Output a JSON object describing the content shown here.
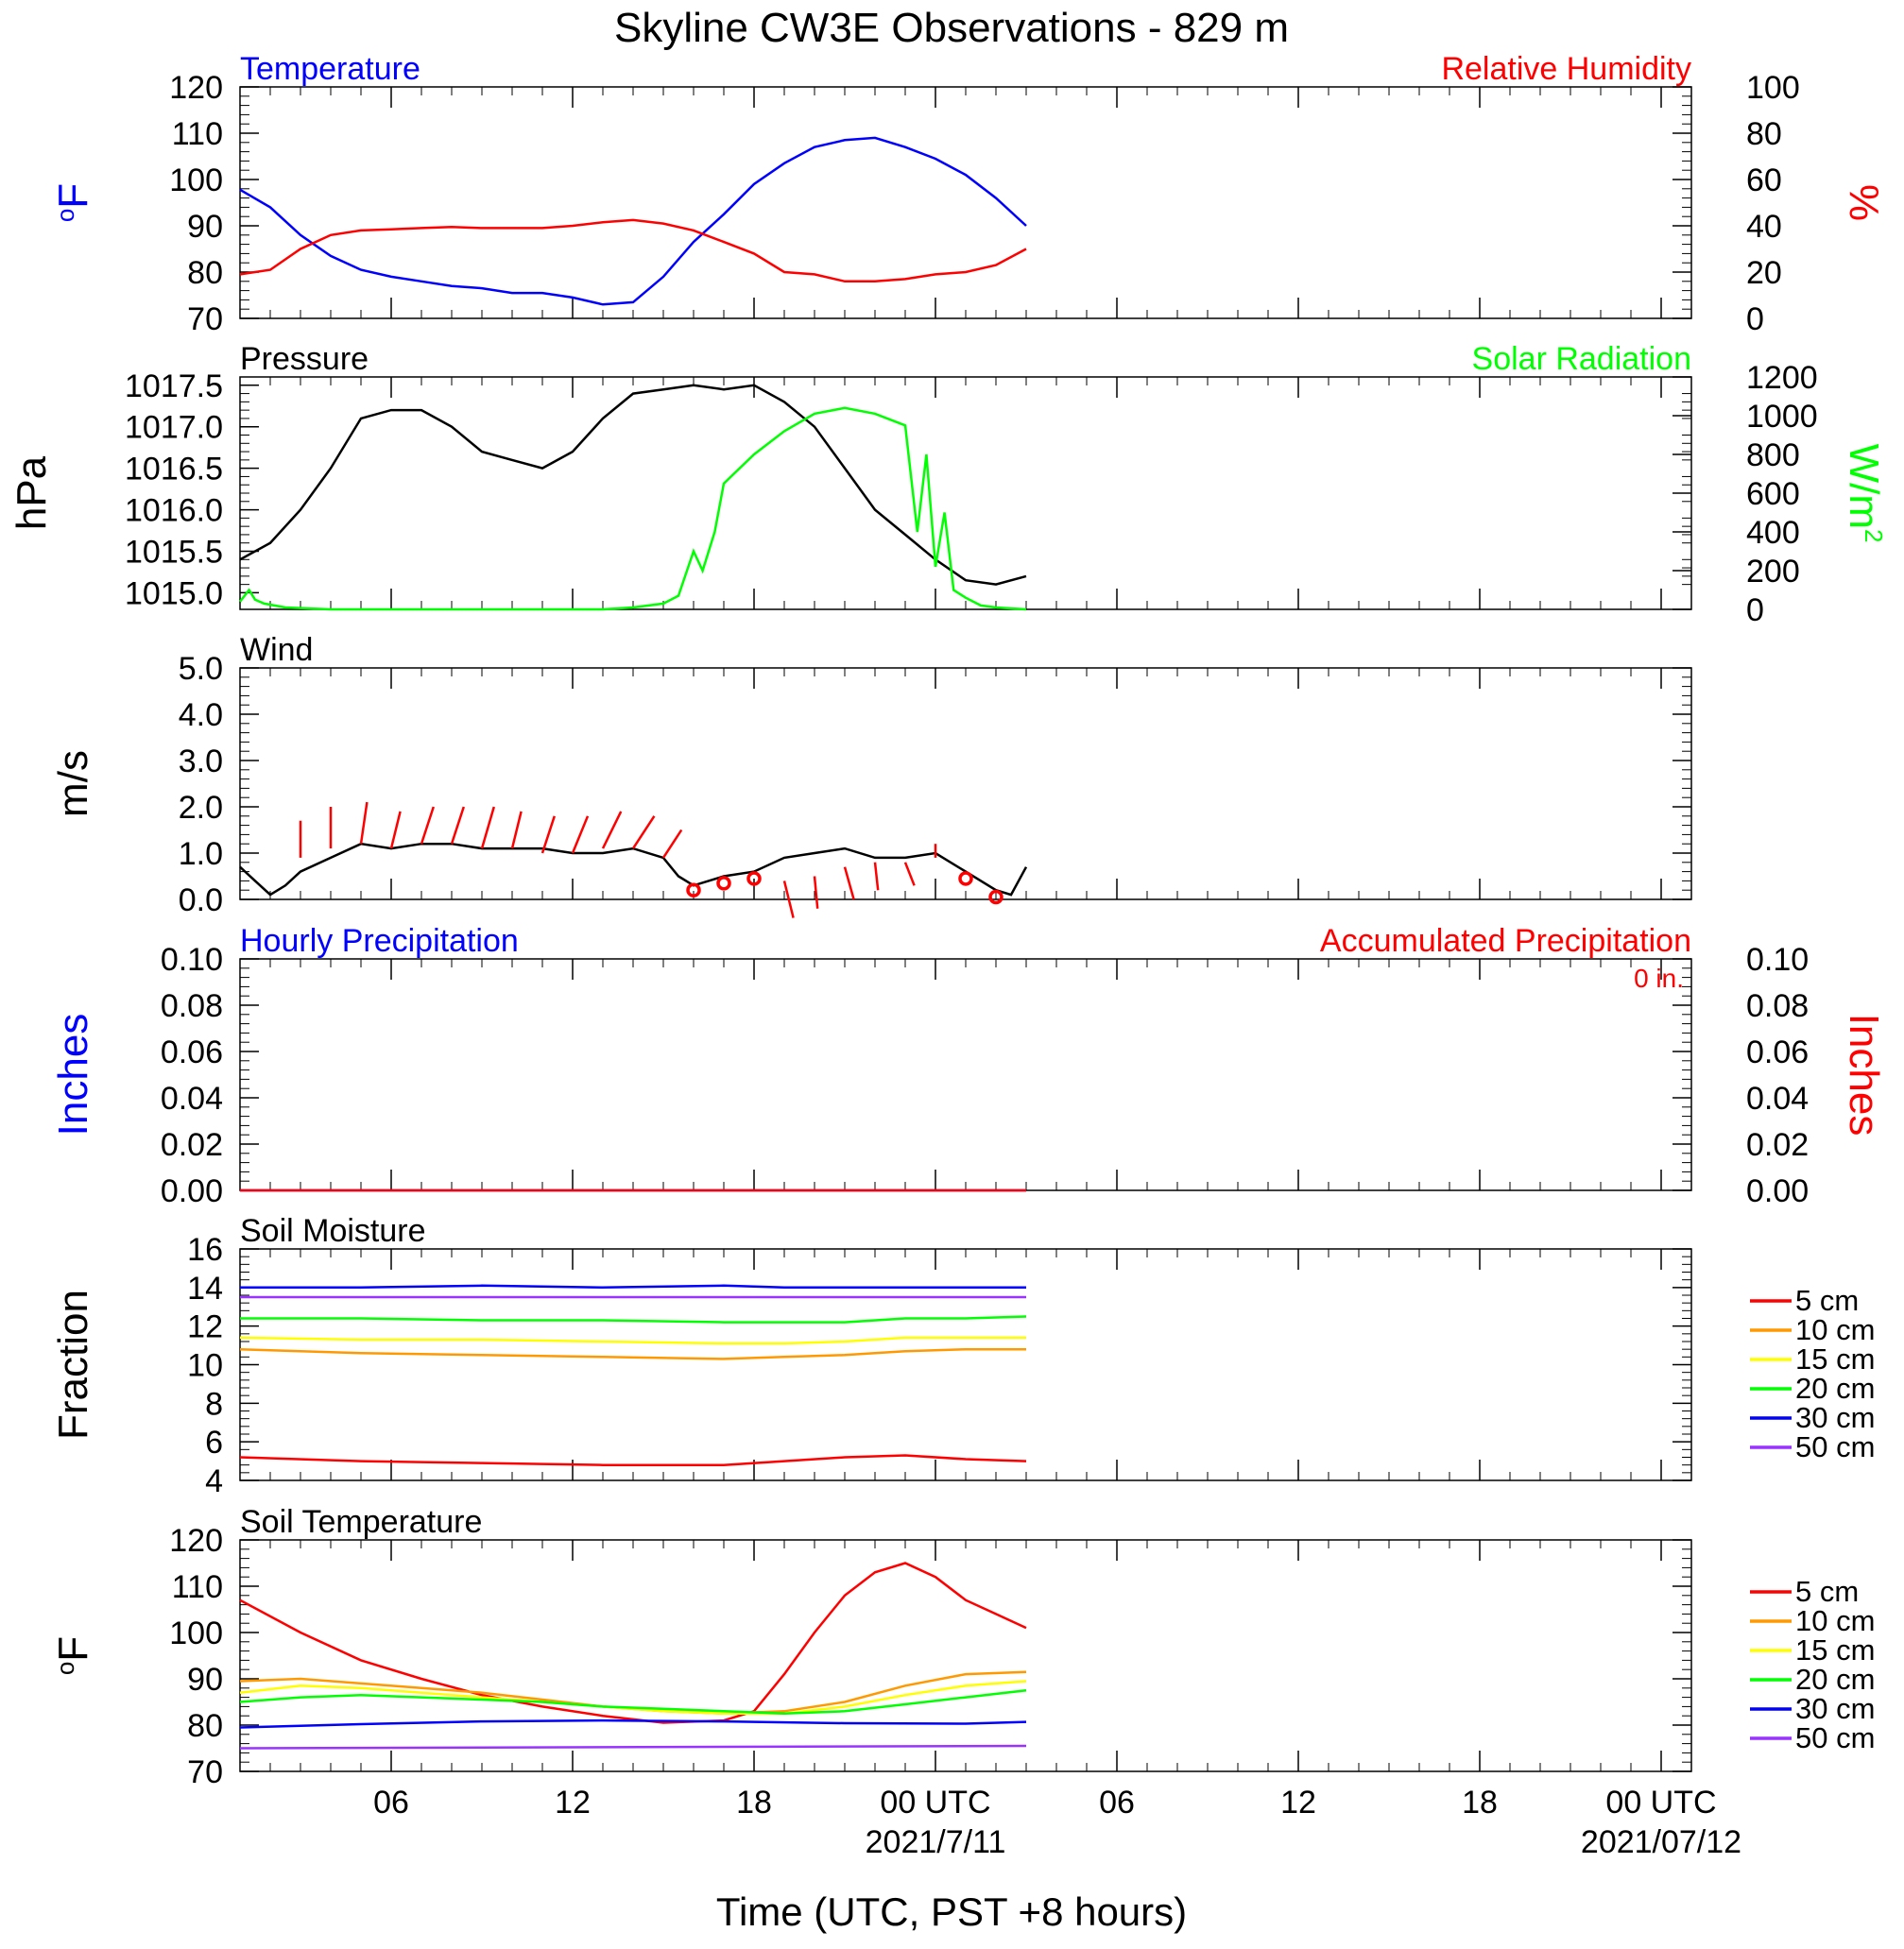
{
  "title": "Skyline CW3E Observations - 829 m",
  "xlabel": "Time (UTC, PST +8 hours)",
  "colors": {
    "temperature": "#0000ff",
    "humidity": "#ff0000",
    "pressure": "#000000",
    "solar": "#00ff00",
    "wind": "#000000",
    "barbs": "#ff0000",
    "hourly_precip": "#0000ff",
    "accum_precip": "#ff0000",
    "depth_5": "#ff0000",
    "depth_10": "#ff9900",
    "depth_15": "#ffff00",
    "depth_20": "#00ff00",
    "depth_30": "#0000ff",
    "depth_50": "#9933ff"
  },
  "x_axis": {
    "range_hours": [
      0,
      48
    ],
    "ticks": [
      {
        "hour": 5,
        "label": "06",
        "sublabel": ""
      },
      {
        "hour": 11,
        "label": "12",
        "sublabel": ""
      },
      {
        "hour": 17,
        "label": "18",
        "sublabel": ""
      },
      {
        "hour": 23,
        "label": "00 UTC",
        "sublabel": "2021/7/11"
      },
      {
        "hour": 29,
        "label": "06",
        "sublabel": ""
      },
      {
        "hour": 35,
        "label": "12",
        "sublabel": ""
      },
      {
        "hour": 41,
        "label": "18",
        "sublabel": ""
      },
      {
        "hour": 47,
        "label": "00 UTC",
        "sublabel": "2021/07/12"
      }
    ]
  },
  "chart_data": [
    {
      "type": "line",
      "panel": "temperature_humidity",
      "left_title": "Temperature",
      "right_title": "Relative Humidity",
      "ylabel": "oF",
      "y2label": "%",
      "ylim": [
        70,
        120
      ],
      "y_ticks": [
        70,
        80,
        90,
        100,
        110,
        120
      ],
      "y2lim": [
        0,
        100
      ],
      "y2_ticks": [
        0,
        20,
        40,
        60,
        80,
        100
      ],
      "series": [
        {
          "name": "Temperature",
          "axis": "left",
          "x": [
            0,
            1,
            2,
            3,
            4,
            5,
            6,
            7,
            8,
            9,
            10,
            11,
            12,
            13,
            14,
            15,
            16,
            17,
            18,
            19,
            20,
            21,
            22,
            23,
            24,
            25,
            26
          ],
          "y": [
            97.8,
            94,
            88,
            83.5,
            80.5,
            79,
            78,
            77,
            76.5,
            75.5,
            75.5,
            74.5,
            73,
            73.5,
            79,
            86.5,
            92.5,
            99,
            103.5,
            107,
            108.5,
            109,
            107,
            104.5,
            101,
            96,
            90
          ]
        },
        {
          "name": "Relative Humidity",
          "axis": "right",
          "x": [
            0,
            1,
            2,
            3,
            4,
            5,
            6,
            7,
            8,
            9,
            10,
            11,
            12,
            13,
            14,
            15,
            16,
            17,
            18,
            19,
            20,
            21,
            22,
            23,
            24,
            25,
            26
          ],
          "y": [
            19,
            21,
            30,
            36,
            38,
            38.5,
            39,
            39.5,
            39,
            39,
            39,
            40,
            41.5,
            42.5,
            41,
            38,
            33,
            28,
            20,
            19,
            16,
            16,
            17,
            19,
            20,
            23,
            30
          ]
        }
      ]
    },
    {
      "type": "line",
      "panel": "pressure_solar",
      "left_title": "Pressure",
      "right_title": "Solar Radiation",
      "ylabel": "hPa",
      "y2label": "W/m2",
      "ylim": [
        1014.8,
        1017.6
      ],
      "y_ticks": [
        1015.0,
        1015.5,
        1016.0,
        1016.5,
        1017.0,
        1017.5
      ],
      "y_tick_labels": [
        "1015.0",
        "1015.5",
        "1016.0",
        "1016.5",
        "1017.0",
        "1017.5"
      ],
      "y2lim": [
        0,
        1200
      ],
      "y2_ticks": [
        0,
        200,
        400,
        600,
        800,
        1000,
        1200
      ],
      "series": [
        {
          "name": "Pressure",
          "axis": "left",
          "x": [
            0,
            1,
            2,
            3,
            4,
            5,
            6,
            7,
            8,
            9,
            10,
            11,
            12,
            13,
            14,
            15,
            16,
            17,
            18,
            19,
            20,
            21,
            22,
            23,
            24,
            25,
            26
          ],
          "y": [
            1015.4,
            1015.6,
            1016.0,
            1016.5,
            1017.1,
            1017.2,
            1017.2,
            1017.0,
            1016.7,
            1016.6,
            1016.5,
            1016.7,
            1017.1,
            1017.4,
            1017.45,
            1017.5,
            1017.45,
            1017.5,
            1017.3,
            1017.0,
            1016.5,
            1016.0,
            1015.7,
            1015.4,
            1015.15,
            1015.1,
            1015.2
          ]
        },
        {
          "name": "Solar Radiation",
          "axis": "right",
          "x": [
            0,
            0.3,
            0.5,
            0.8,
            1.5,
            3,
            10,
            12,
            13,
            14,
            14.5,
            15,
            15.3,
            15.7,
            16,
            17,
            18,
            19,
            20,
            21,
            22,
            22.4,
            22.7,
            23,
            23.3,
            23.6,
            24,
            24.5,
            25,
            26
          ],
          "y": [
            40,
            100,
            50,
            30,
            10,
            0,
            0,
            0,
            10,
            30,
            70,
            300,
            200,
            400,
            650,
            800,
            920,
            1010,
            1040,
            1010,
            950,
            400,
            800,
            220,
            500,
            100,
            60,
            20,
            10,
            0
          ]
        }
      ]
    },
    {
      "type": "line",
      "panel": "wind",
      "left_title": "Wind",
      "ylabel": "m/s",
      "ylim": [
        0,
        5
      ],
      "y_ticks": [
        0,
        1,
        2,
        3,
        4,
        5
      ],
      "y_tick_labels": [
        "0.0",
        "1.0",
        "2.0",
        "3.0",
        "4.0",
        "5.0"
      ],
      "series": [
        {
          "name": "Wind Speed",
          "x": [
            0,
            0.5,
            1,
            1.5,
            2,
            3,
            4,
            5,
            6,
            7,
            8,
            9,
            10,
            11,
            12,
            13,
            14,
            14.5,
            15,
            16,
            17,
            18,
            19,
            20,
            21,
            22,
            23,
            24,
            25,
            25.5,
            26
          ],
          "y": [
            0.7,
            0.4,
            0.1,
            0.3,
            0.6,
            0.9,
            1.2,
            1.1,
            1.2,
            1.2,
            1.1,
            1.1,
            1.1,
            1.0,
            1.0,
            1.1,
            0.9,
            0.5,
            0.3,
            0.5,
            0.6,
            0.9,
            1.0,
            1.1,
            0.9,
            0.9,
            1.0,
            0.6,
            0.2,
            0.1,
            0.7
          ]
        }
      ],
      "barbs": {
        "x": [
          2,
          3,
          4,
          5,
          6,
          7,
          8,
          9,
          10,
          11,
          12,
          13,
          14,
          18,
          19,
          20,
          21,
          22,
          23
        ],
        "base": [
          0.9,
          1.1,
          1.2,
          1.1,
          1.2,
          1.2,
          1.1,
          1.1,
          1.0,
          1.0,
          1.1,
          1.1,
          0.9,
          0.4,
          0.5,
          0.7,
          0.8,
          0.8,
          0.9
        ],
        "dx": [
          0,
          0,
          0.2,
          0.3,
          0.4,
          0.4,
          0.4,
          0.3,
          0.4,
          0.5,
          0.6,
          0.7,
          0.6,
          0.3,
          0.1,
          0.3,
          0.1,
          0.3,
          0
        ],
        "dy": [
          0.8,
          0.9,
          0.9,
          0.8,
          0.8,
          0.8,
          0.9,
          0.8,
          0.8,
          0.8,
          0.8,
          0.7,
          0.6,
          -0.8,
          -0.7,
          -0.7,
          -0.6,
          -0.5,
          0.3
        ]
      },
      "calm_markers": {
        "x": [
          15,
          16,
          17,
          24,
          25
        ],
        "y": [
          0.2,
          0.35,
          0.45,
          0.45,
          0.05
        ]
      }
    },
    {
      "type": "line",
      "panel": "precipitation",
      "left_title": "Hourly Precipitation",
      "right_title": "Accumulated Precipitation",
      "total_label": "0 in.",
      "ylabel": "Inches",
      "y2label": "Inches",
      "ylim": [
        0,
        0.1
      ],
      "y_ticks": [
        0,
        0.02,
        0.04,
        0.06,
        0.08,
        0.1
      ],
      "y_tick_labels": [
        "0.00",
        "0.02",
        "0.04",
        "0.06",
        "0.08",
        "0.10"
      ],
      "y2lim": [
        0,
        0.1
      ],
      "series": [
        {
          "name": "Hourly Precipitation",
          "axis": "left",
          "x": [
            0,
            26
          ],
          "y": [
            0,
            0
          ]
        },
        {
          "name": "Accumulated Precipitation",
          "axis": "right",
          "x": [
            0,
            26
          ],
          "y": [
            0,
            0
          ]
        }
      ]
    },
    {
      "type": "line",
      "panel": "soil_moisture",
      "left_title": "Soil Moisture",
      "ylabel": "Fraction",
      "ylim": [
        4,
        16
      ],
      "y_ticks": [
        4,
        6,
        8,
        10,
        12,
        14,
        16
      ],
      "legend": [
        "5 cm",
        "10 cm",
        "15 cm",
        "20 cm",
        "30 cm",
        "50 cm"
      ],
      "series": [
        {
          "name": "5 cm",
          "x": [
            0,
            4,
            8,
            12,
            16,
            18,
            20,
            22,
            24,
            26
          ],
          "y": [
            5.2,
            5.0,
            4.9,
            4.8,
            4.8,
            5.0,
            5.2,
            5.3,
            5.1,
            5.0
          ]
        },
        {
          "name": "10 cm",
          "x": [
            0,
            4,
            8,
            12,
            16,
            18,
            20,
            22,
            24,
            26
          ],
          "y": [
            10.8,
            10.6,
            10.5,
            10.4,
            10.3,
            10.4,
            10.5,
            10.7,
            10.8,
            10.8
          ]
        },
        {
          "name": "15 cm",
          "x": [
            0,
            4,
            8,
            12,
            16,
            18,
            20,
            22,
            24,
            26
          ],
          "y": [
            11.4,
            11.3,
            11.3,
            11.2,
            11.1,
            11.1,
            11.2,
            11.4,
            11.4,
            11.4
          ]
        },
        {
          "name": "20 cm",
          "x": [
            0,
            4,
            8,
            12,
            16,
            18,
            20,
            22,
            24,
            26
          ],
          "y": [
            12.4,
            12.4,
            12.3,
            12.3,
            12.2,
            12.2,
            12.2,
            12.4,
            12.4,
            12.5
          ]
        },
        {
          "name": "30 cm",
          "x": [
            0,
            4,
            8,
            12,
            16,
            18,
            20,
            22,
            24,
            26
          ],
          "y": [
            14.0,
            14.0,
            14.1,
            14.0,
            14.1,
            14.0,
            14.0,
            14.0,
            14.0,
            14.0
          ]
        },
        {
          "name": "50 cm",
          "x": [
            0,
            26
          ],
          "y": [
            13.5,
            13.5
          ]
        }
      ]
    },
    {
      "type": "line",
      "panel": "soil_temperature",
      "left_title": "Soil Temperature",
      "ylabel": "oF",
      "ylim": [
        70,
        120
      ],
      "y_ticks": [
        70,
        80,
        90,
        100,
        110,
        120
      ],
      "legend": [
        "5 cm",
        "10 cm",
        "15 cm",
        "20 cm",
        "30 cm",
        "50 cm"
      ],
      "series": [
        {
          "name": "5 cm",
          "x": [
            0,
            2,
            4,
            6,
            8,
            10,
            12,
            14,
            16,
            17,
            18,
            19,
            20,
            21,
            22,
            23,
            24,
            25,
            26
          ],
          "y": [
            107,
            100,
            94,
            90,
            86.5,
            84,
            82,
            80.5,
            81,
            83,
            91,
            100,
            108,
            113,
            115,
            112,
            107,
            104,
            101
          ]
        },
        {
          "name": "10 cm",
          "x": [
            0,
            2,
            4,
            6,
            8,
            10,
            12,
            14,
            16,
            18,
            20,
            22,
            24,
            26
          ],
          "y": [
            89.5,
            90,
            89,
            88,
            87,
            85.5,
            84,
            83,
            82.5,
            83,
            85,
            88.5,
            91,
            91.5
          ]
        },
        {
          "name": "15 cm",
          "x": [
            0,
            2,
            4,
            6,
            8,
            10,
            12,
            14,
            16,
            18,
            20,
            22,
            24,
            26
          ],
          "y": [
            87,
            88.5,
            88,
            87,
            86,
            85,
            84,
            83,
            82.5,
            82.5,
            84,
            86.5,
            88.5,
            89.5
          ]
        },
        {
          "name": "20 cm",
          "x": [
            0,
            2,
            4,
            6,
            8,
            10,
            12,
            14,
            16,
            18,
            20,
            22,
            24,
            26
          ],
          "y": [
            85,
            86,
            86.5,
            86,
            85.5,
            85,
            84,
            83.5,
            83,
            82.5,
            83,
            84.5,
            86,
            87.5
          ]
        },
        {
          "name": "30 cm",
          "x": [
            0,
            4,
            8,
            12,
            16,
            20,
            24,
            26
          ],
          "y": [
            79.5,
            80.2,
            80.8,
            81,
            80.8,
            80.4,
            80.3,
            80.7
          ]
        },
        {
          "name": "50 cm",
          "x": [
            0,
            26
          ],
          "y": [
            75,
            75.5
          ]
        }
      ]
    }
  ]
}
